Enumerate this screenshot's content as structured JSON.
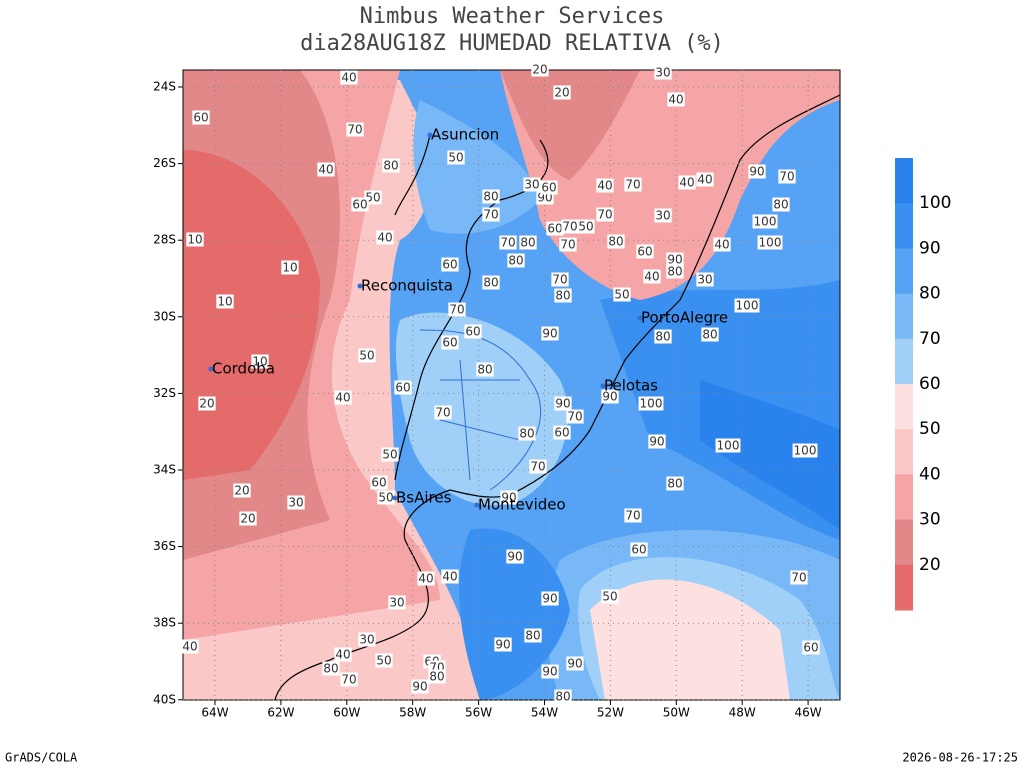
{
  "title": [
    "Nimbus Weather Services",
    "dia28AUG18Z HUMEDAD RELATIVA (%)"
  ],
  "map": {
    "lat_ticks": [
      "24S",
      "26S",
      "28S",
      "30S",
      "32S",
      "34S",
      "36S",
      "38S",
      "40S"
    ],
    "lon_ticks": [
      "64W",
      "62W",
      "60W",
      "58W",
      "56W",
      "54W",
      "52W",
      "50W",
      "48W",
      "46W"
    ],
    "cities": [
      "Asuncion",
      "Reconquista",
      "Cordoba",
      "PortoAlegre",
      "Pelotas",
      "BsAires",
      "Montevideo"
    ],
    "contour_labels": [
      40,
      20,
      30,
      40,
      20,
      60,
      70,
      50,
      80,
      40,
      50,
      60,
      10,
      10,
      10,
      40,
      60,
      80,
      70,
      60,
      60,
      50,
      10,
      80,
      60,
      40,
      20,
      70,
      90,
      80,
      80,
      100,
      90,
      100,
      90,
      70,
      80,
      60,
      90,
      100,
      100,
      70,
      50,
      60,
      50,
      20,
      30,
      20,
      90,
      80,
      70,
      60,
      90,
      70,
      50,
      90,
      80,
      90,
      60,
      40,
      40,
      30,
      30,
      40,
      40,
      50,
      80,
      70,
      60,
      70,
      80,
      90,
      90,
      90,
      80,
      40,
      70,
      30,
      40,
      40,
      80,
      70,
      90,
      100,
      100,
      40,
      30,
      60,
      40,
      90,
      80,
      50,
      80,
      70,
      80,
      60,
      70,
      70,
      90,
      60,
      30,
      80,
      70,
      70,
      80,
      80,
      50,
      70
    ]
  },
  "colorbar": {
    "labels": [
      100,
      90,
      80,
      70,
      60,
      50,
      40,
      30,
      20
    ],
    "colors": [
      "#2a82ec",
      "#3a90f0",
      "#56a2f4",
      "#78b8f6",
      "#a0d0f8",
      "#fde0e0",
      "#fbc8c8",
      "#f5a5a5",
      "#e38888",
      "#e56a6a"
    ]
  },
  "footer": {
    "left": "GrADS/COLA",
    "right": "2026-08-26-17:25"
  }
}
